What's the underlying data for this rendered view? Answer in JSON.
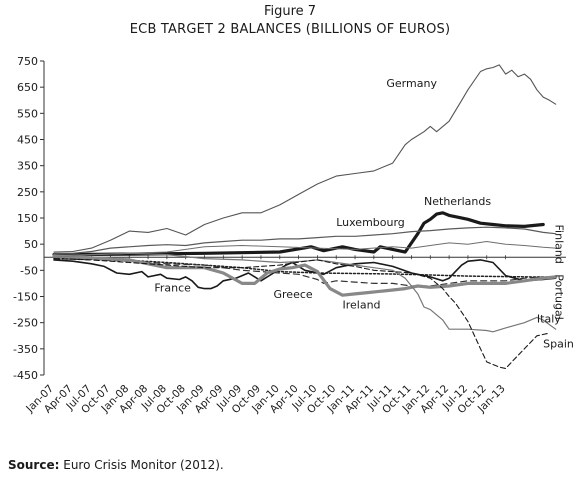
{
  "figure_label": "Figure 7",
  "source": {
    "label": "Source:",
    "text": "Euro Crisis Monitor (2012)."
  },
  "chart_data": {
    "type": "line",
    "title": "ECB TARGET 2 BALANCES (BILLIONS OF EUROS)",
    "xlabel": "",
    "ylabel": "",
    "ylim": [
      -450,
      750
    ],
    "yticks": [
      750,
      650,
      550,
      450,
      350,
      250,
      150,
      50,
      -50,
      -150,
      -250,
      -350,
      -450
    ],
    "ytick_labels": [
      "750",
      "650",
      "550",
      "450",
      "350",
      "250",
      "150",
      "50",
      "-50",
      "-150",
      "-250",
      "-350",
      "-450"
    ],
    "xticks": [
      "Jan-07",
      "Apr-07",
      "Jul-07",
      "Oct-07",
      "Jan-08",
      "Apr-08",
      "Jul-08",
      "Oct-08",
      "Jan-09",
      "Apr-09",
      "Jul-09",
      "Oct-09",
      "Jan-10",
      "Apr-10",
      "Jul-10",
      "Oct-10",
      "Jan-11",
      "Apr-11",
      "Jul-11",
      "Oct-11",
      "Jan-12",
      "Apr-12",
      "Jul-12",
      "Oct-12",
      "Jan-13"
    ],
    "x_unit": "months since Jan-07",
    "grid": false,
    "series": [
      {
        "name": "Germany",
        "color": "#555555",
        "width": 1.1,
        "dash": "",
        "points": [
          [
            0,
            20
          ],
          [
            3,
            22
          ],
          [
            6,
            35
          ],
          [
            9,
            65
          ],
          [
            12,
            100
          ],
          [
            15,
            95
          ],
          [
            18,
            110
          ],
          [
            21,
            85
          ],
          [
            24,
            125
          ],
          [
            27,
            150
          ],
          [
            30,
            170
          ],
          [
            33,
            170
          ],
          [
            36,
            200
          ],
          [
            39,
            240
          ],
          [
            42,
            280
          ],
          [
            45,
            310
          ],
          [
            48,
            320
          ],
          [
            51,
            330
          ],
          [
            54,
            360
          ],
          [
            56,
            430
          ],
          [
            57,
            450
          ],
          [
            59,
            480
          ],
          [
            60,
            500
          ],
          [
            61,
            480
          ],
          [
            63,
            520
          ],
          [
            65,
            600
          ],
          [
            66,
            640
          ],
          [
            68,
            710
          ],
          [
            69,
            720
          ],
          [
            70,
            725
          ],
          [
            71,
            735
          ],
          [
            72,
            700
          ],
          [
            73,
            715
          ],
          [
            74,
            690
          ],
          [
            75,
            700
          ],
          [
            76,
            680
          ],
          [
            77,
            640
          ],
          [
            78,
            612
          ],
          [
            79,
            600
          ],
          [
            80,
            585
          ]
        ]
      },
      {
        "name": "Netherlands",
        "color": "#1a1a1a",
        "width": 3.2,
        "dash": "",
        "points": [
          [
            0,
            10
          ],
          [
            12,
            12
          ],
          [
            24,
            15
          ],
          [
            36,
            20
          ],
          [
            41,
            40
          ],
          [
            43,
            25
          ],
          [
            46,
            40
          ],
          [
            48,
            30
          ],
          [
            51,
            20
          ],
          [
            52,
            40
          ],
          [
            54,
            30
          ],
          [
            56,
            20
          ],
          [
            58,
            90
          ],
          [
            59,
            130
          ],
          [
            60,
            145
          ],
          [
            61,
            165
          ],
          [
            62,
            170
          ],
          [
            63,
            160
          ],
          [
            64,
            155
          ],
          [
            66,
            145
          ],
          [
            68,
            130
          ],
          [
            70,
            125
          ],
          [
            72,
            120
          ],
          [
            75,
            118
          ],
          [
            78,
            125
          ]
        ]
      },
      {
        "name": "Luxembourg",
        "color": "#5a5a5a",
        "width": 1.2,
        "dash": "",
        "points": [
          [
            0,
            15
          ],
          [
            3,
            15
          ],
          [
            6,
            22
          ],
          [
            9,
            35
          ],
          [
            12,
            40
          ],
          [
            15,
            45
          ],
          [
            18,
            48
          ],
          [
            21,
            45
          ],
          [
            24,
            55
          ],
          [
            27,
            60
          ],
          [
            30,
            65
          ],
          [
            33,
            65
          ],
          [
            36,
            70
          ],
          [
            39,
            70
          ],
          [
            42,
            75
          ],
          [
            45,
            80
          ],
          [
            48,
            80
          ],
          [
            51,
            85
          ],
          [
            54,
            90
          ],
          [
            57,
            98
          ],
          [
            60,
            102
          ],
          [
            63,
            108
          ],
          [
            66,
            112
          ],
          [
            69,
            115
          ],
          [
            72,
            112
          ],
          [
            75,
            108
          ],
          [
            78,
            95
          ],
          [
            80,
            90
          ]
        ]
      },
      {
        "name": "Finland",
        "color": "#6e6e6e",
        "width": 1.0,
        "dash": "",
        "points": [
          [
            0,
            8
          ],
          [
            6,
            10
          ],
          [
            12,
            15
          ],
          [
            18,
            20
          ],
          [
            24,
            40
          ],
          [
            30,
            45
          ],
          [
            36,
            40
          ],
          [
            42,
            35
          ],
          [
            48,
            30
          ],
          [
            54,
            40
          ],
          [
            57,
            35
          ],
          [
            60,
            45
          ],
          [
            63,
            55
          ],
          [
            66,
            50
          ],
          [
            69,
            60
          ],
          [
            72,
            50
          ],
          [
            75,
            45
          ],
          [
            78,
            38
          ],
          [
            80,
            35
          ]
        ]
      },
      {
        "name": "Portugal",
        "color": "#222222",
        "width": 1.5,
        "dash": "2,2",
        "points": [
          [
            0,
            -5
          ],
          [
            6,
            -8
          ],
          [
            12,
            -12
          ],
          [
            18,
            -20
          ],
          [
            24,
            -30
          ],
          [
            30,
            -40
          ],
          [
            36,
            -55
          ],
          [
            42,
            -60
          ],
          [
            48,
            -62
          ],
          [
            54,
            -64
          ],
          [
            60,
            -68
          ],
          [
            66,
            -72
          ],
          [
            72,
            -74
          ],
          [
            78,
            -76
          ],
          [
            80,
            -75
          ]
        ]
      },
      {
        "name": "France",
        "color": "#1a1a1a",
        "width": 1.6,
        "dash": "",
        "points": [
          [
            0,
            -10
          ],
          [
            3,
            -15
          ],
          [
            6,
            -25
          ],
          [
            8,
            -35
          ],
          [
            10,
            -60
          ],
          [
            12,
            -65
          ],
          [
            14,
            -55
          ],
          [
            15,
            -75
          ],
          [
            17,
            -65
          ],
          [
            18,
            -80
          ],
          [
            20,
            -85
          ],
          [
            21,
            -75
          ],
          [
            22,
            -90
          ],
          [
            23,
            -115
          ],
          [
            24,
            -120
          ],
          [
            25,
            -120
          ],
          [
            26,
            -110
          ],
          [
            27,
            -90
          ],
          [
            29,
            -80
          ],
          [
            31,
            -60
          ],
          [
            33,
            -90
          ],
          [
            35,
            -60
          ],
          [
            37,
            -30
          ],
          [
            38,
            -20
          ],
          [
            40,
            -50
          ],
          [
            43,
            -65
          ],
          [
            45,
            -40
          ],
          [
            48,
            -25
          ],
          [
            51,
            -20
          ],
          [
            54,
            -35
          ],
          [
            57,
            -60
          ],
          [
            60,
            -75
          ],
          [
            62,
            -90
          ],
          [
            63,
            -80
          ],
          [
            64,
            -55
          ],
          [
            65,
            -30
          ],
          [
            66,
            -15
          ],
          [
            68,
            -10
          ],
          [
            70,
            -20
          ],
          [
            72,
            -70
          ],
          [
            75,
            -90
          ],
          [
            78,
            -85
          ],
          [
            80,
            -80
          ]
        ]
      },
      {
        "name": "Greece",
        "color": "#333333",
        "width": 1.2,
        "dash": "6,4",
        "points": [
          [
            0,
            -5
          ],
          [
            6,
            -10
          ],
          [
            12,
            -15
          ],
          [
            18,
            -25
          ],
          [
            24,
            -30
          ],
          [
            27,
            -40
          ],
          [
            30,
            -50
          ],
          [
            33,
            -55
          ],
          [
            36,
            -60
          ],
          [
            39,
            -65
          ],
          [
            42,
            -85
          ],
          [
            43,
            -100
          ],
          [
            45,
            -90
          ],
          [
            48,
            -95
          ],
          [
            51,
            -100
          ],
          [
            54,
            -100
          ],
          [
            57,
            -110
          ],
          [
            60,
            -110
          ],
          [
            63,
            -100
          ],
          [
            66,
            -90
          ],
          [
            69,
            -90
          ],
          [
            72,
            -90
          ],
          [
            75,
            -80
          ],
          [
            78,
            -75
          ],
          [
            80,
            -78
          ]
        ]
      },
      {
        "name": "Ireland",
        "color": "#888888",
        "width": 3.2,
        "dash": "",
        "points": [
          [
            0,
            5
          ],
          [
            12,
            -10
          ],
          [
            18,
            -40
          ],
          [
            24,
            -40
          ],
          [
            27,
            -60
          ],
          [
            30,
            -100
          ],
          [
            32,
            -100
          ],
          [
            34,
            -60
          ],
          [
            36,
            -45
          ],
          [
            38,
            -40
          ],
          [
            40,
            -30
          ],
          [
            42,
            -55
          ],
          [
            44,
            -120
          ],
          [
            46,
            -145
          ],
          [
            48,
            -140
          ],
          [
            50,
            -135
          ],
          [
            52,
            -130
          ],
          [
            54,
            -125
          ],
          [
            56,
            -120
          ],
          [
            58,
            -110
          ],
          [
            60,
            -115
          ],
          [
            63,
            -110
          ],
          [
            66,
            -100
          ],
          [
            69,
            -100
          ],
          [
            72,
            -100
          ],
          [
            75,
            -90
          ],
          [
            78,
            -80
          ],
          [
            80,
            -75
          ]
        ]
      },
      {
        "name": "Italy",
        "color": "#777777",
        "width": 1.2,
        "dash": "",
        "points": [
          [
            0,
            0
          ],
          [
            6,
            10
          ],
          [
            12,
            15
          ],
          [
            18,
            10
          ],
          [
            24,
            -5
          ],
          [
            30,
            -10
          ],
          [
            36,
            -20
          ],
          [
            40,
            -15
          ],
          [
            42,
            -10
          ],
          [
            45,
            -20
          ],
          [
            48,
            -30
          ],
          [
            51,
            -40
          ],
          [
            54,
            -50
          ],
          [
            56,
            -80
          ],
          [
            58,
            -140
          ],
          [
            59,
            -190
          ],
          [
            60,
            -200
          ],
          [
            62,
            -240
          ],
          [
            63,
            -275
          ],
          [
            66,
            -275
          ],
          [
            69,
            -280
          ],
          [
            70,
            -285
          ],
          [
            72,
            -270
          ],
          [
            75,
            -250
          ],
          [
            77,
            -230
          ],
          [
            78,
            -240
          ],
          [
            80,
            -275
          ]
        ]
      },
      {
        "name": "Spain",
        "color": "#1a1a1a",
        "width": 1.1,
        "dash": "5,3",
        "points": [
          [
            0,
            -5
          ],
          [
            6,
            -10
          ],
          [
            12,
            -20
          ],
          [
            18,
            -30
          ],
          [
            24,
            -40
          ],
          [
            30,
            -40
          ],
          [
            36,
            -30
          ],
          [
            40,
            -15
          ],
          [
            42,
            -10
          ],
          [
            45,
            -25
          ],
          [
            48,
            -35
          ],
          [
            51,
            -50
          ],
          [
            54,
            -55
          ],
          [
            57,
            -60
          ],
          [
            60,
            -80
          ],
          [
            62,
            -120
          ],
          [
            63,
            -150
          ],
          [
            64,
            -175
          ],
          [
            66,
            -245
          ],
          [
            68,
            -350
          ],
          [
            69,
            -400
          ],
          [
            71,
            -420
          ],
          [
            72,
            -425
          ],
          [
            73,
            -400
          ],
          [
            75,
            -350
          ],
          [
            77,
            -300
          ],
          [
            79,
            -290
          ]
        ]
      }
    ],
    "labels": [
      {
        "text": "Germany",
        "at": [
          53,
          650
        ]
      },
      {
        "text": "Netherlands",
        "at": [
          59,
          200
        ]
      },
      {
        "text": "Luxembourg",
        "at": [
          45,
          120
        ]
      },
      {
        "text": "Finland",
        "at": [
          80,
          125
        ],
        "rotate": 90
      },
      {
        "text": "Portugal",
        "at": [
          80,
          -65
        ],
        "rotate": 90
      },
      {
        "text": "France",
        "at": [
          16,
          -130
        ]
      },
      {
        "text": "Greece",
        "at": [
          35,
          -155
        ]
      },
      {
        "text": "Ireland",
        "at": [
          46,
          -195
        ]
      },
      {
        "text": "Italy",
        "at": [
          77,
          -250
        ]
      },
      {
        "text": "Spain",
        "at": [
          78,
          -345
        ]
      }
    ]
  }
}
